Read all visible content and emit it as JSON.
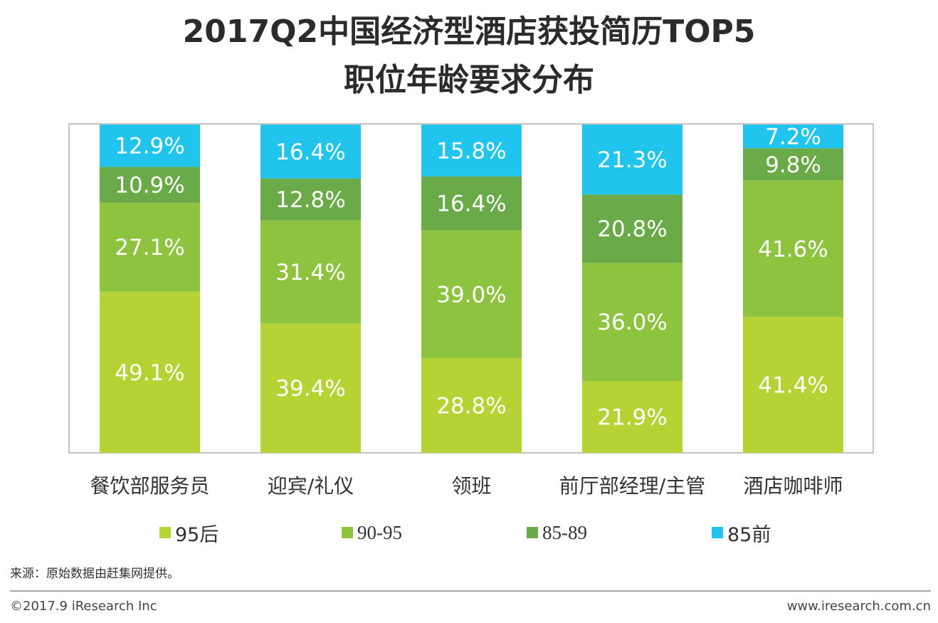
{
  "title_line1": "2017Q2中国经济型酒店获投简历TOP5",
  "title_line2": "职位年龄要求分布",
  "source": "来源：原始数据由赶集网提供。",
  "copyright": "©2017.9 iResearch Inc",
  "website": "www.iresearch.com.cn",
  "colors": {
    "s95hou": "#b5d334",
    "s9095": "#8dc33f",
    "s8589": "#6aaa48",
    "s85qian": "#21c4ec"
  },
  "chart_data": {
    "type": "bar",
    "stacked": true,
    "percent": true,
    "categories": [
      "餐饮部服务员",
      "迎宾/礼仪",
      "领班",
      "前厅部经理/主管",
      "酒店咖啡师"
    ],
    "series": [
      {
        "name": "95后",
        "values": [
          49.1,
          39.4,
          28.8,
          21.9,
          41.4
        ],
        "labels": [
          "49.1%",
          "39.4%",
          "28.8%",
          "21.9%",
          "41.4%"
        ]
      },
      {
        "name": "90-95",
        "values": [
          27.1,
          31.4,
          39.0,
          36.0,
          41.6
        ],
        "labels": [
          "27.1%",
          "31.4%",
          "39.0%",
          "36.0%",
          "41.6%"
        ]
      },
      {
        "name": "85-89",
        "values": [
          10.9,
          12.8,
          16.4,
          20.8,
          9.8
        ],
        "labels": [
          "10.9%",
          "12.8%",
          "16.4%",
          "20.8%",
          "9.8%"
        ]
      },
      {
        "name": "85前",
        "values": [
          12.9,
          16.4,
          15.8,
          21.3,
          7.2
        ],
        "labels": [
          "12.9%",
          "16.4%",
          "15.8%",
          "21.3%",
          "7.2%"
        ]
      }
    ],
    "ylim": [
      0,
      100
    ],
    "legend_position": "bottom"
  }
}
